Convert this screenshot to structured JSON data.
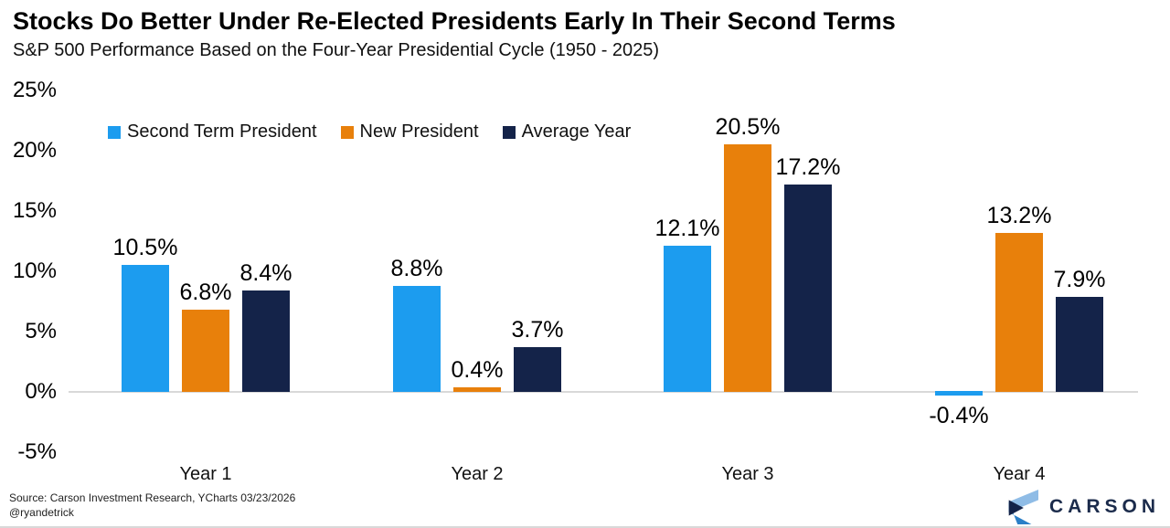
{
  "header": {
    "title": "Stocks Do Better Under Re-Elected Presidents Early In Their Second Terms",
    "subtitle": "S&P 500 Performance Based on the Four-Year Presidential Cycle (1950 - 2025)"
  },
  "chart_data": {
    "type": "bar",
    "title": "Stocks Do Better Under Re-Elected Presidents Early In Their Second Terms",
    "subtitle": "S&P 500 Performance Based on the Four-Year Presidential Cycle (1950 - 2025)",
    "categories": [
      "Year 1",
      "Year 2",
      "Year 3",
      "Year 4"
    ],
    "series": [
      {
        "name": "Second Term President",
        "color": "#1C9CEF",
        "values": [
          10.5,
          8.8,
          12.1,
          -0.4
        ]
      },
      {
        "name": "New President",
        "color": "#E8800B",
        "values": [
          6.8,
          0.4,
          20.5,
          13.2
        ]
      },
      {
        "name": "Average Year",
        "color": "#142349",
        "values": [
          8.4,
          3.7,
          17.2,
          7.9
        ]
      }
    ],
    "value_suffix": "%",
    "y_ticks": [
      {
        "label": "25%",
        "value": 25
      },
      {
        "label": "20%",
        "value": 20
      },
      {
        "label": "15%",
        "value": 15
      },
      {
        "label": "10%",
        "value": 10
      },
      {
        "label": "5%",
        "value": 5
      },
      {
        "label": "0%",
        "value": 0
      },
      {
        "label": "-5%",
        "value": -5
      }
    ],
    "ylim": [
      -5,
      25
    ],
    "grid": "zero-line-only",
    "legend_position": "top-left"
  },
  "footer": {
    "source_line1": "Source: Carson Investment Research, YCharts 03/23/2026",
    "source_line2": "@ryandetrick",
    "logo_text": "CARSON"
  },
  "colors": {
    "second_term": "#1C9CEF",
    "new_president": "#E8800B",
    "average_year": "#142349",
    "zero_line": "#D9D9D9",
    "logo_navy": "#1B2B4B",
    "logo_light_blue": "#8FBCE6",
    "logo_mid_blue": "#2B7FC7"
  }
}
